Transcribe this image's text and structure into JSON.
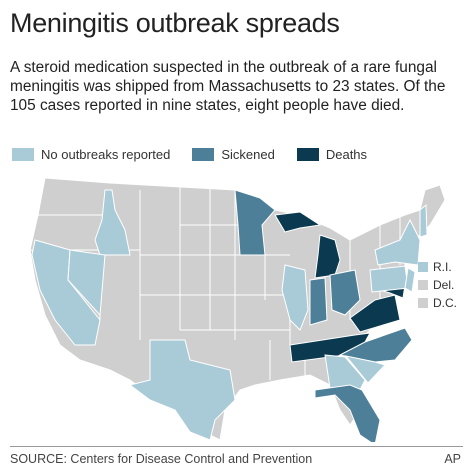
{
  "header": {
    "title": "Meningitis outbreak spreads",
    "subtitle": "A steroid medication suspected in the outbreak of a rare fungal meningitis was shipped from Massachusetts to 23 states. Of the 105 cases reported in nine states, eight people have died."
  },
  "legend": [
    {
      "label": "No outbreaks reported",
      "color": "#a9cbd8"
    },
    {
      "label": "Sickened",
      "color": "#4d7f98"
    },
    {
      "label": "Deaths",
      "color": "#0b3a50"
    }
  ],
  "map": {
    "base_color": "#cfcfcf",
    "insets": [
      {
        "label": "R.I.",
        "color": "#a9cbd8"
      },
      {
        "label": "Del.",
        "color": "#cfcfcf"
      },
      {
        "label": "D.C.",
        "color": "#cfcfcf"
      }
    ]
  },
  "footer": {
    "source": "SOURCE: Centers for Disease Control and Prevention",
    "credit": "AP"
  }
}
